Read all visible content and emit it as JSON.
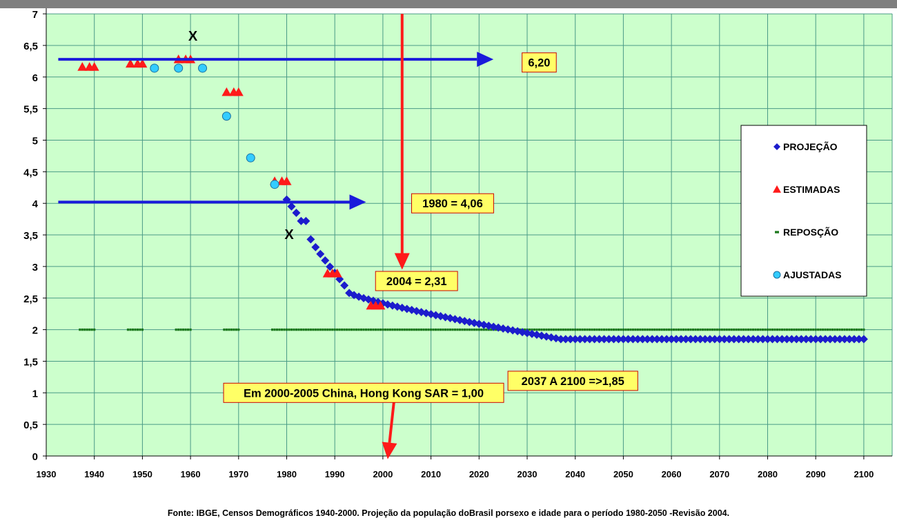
{
  "chart_data": {
    "type": "scatter",
    "xlim": [
      1930,
      2105
    ],
    "ylim": [
      0,
      7
    ],
    "x_ticks": [
      1930,
      1940,
      1950,
      1960,
      1970,
      1980,
      1990,
      2000,
      2010,
      2020,
      2030,
      2040,
      2050,
      2060,
      2070,
      2080,
      2090,
      2100
    ],
    "y_ticks": [
      0,
      0.5,
      1,
      1.5,
      2,
      2.5,
      3,
      3.5,
      4,
      4.5,
      5,
      5.5,
      6,
      6.5,
      7
    ],
    "y_tick_labels": [
      "0",
      "0,5",
      "1",
      "1,5",
      "2",
      "2,5",
      "3",
      "3,5",
      "4",
      "4,5",
      "5",
      "5,5",
      "6",
      "6,5",
      "7"
    ],
    "grid": true,
    "legend_position": "right",
    "colors": {
      "plot_bg": "#ccffcc",
      "grid": "#4a9a86",
      "projecao": "#1c1ccc",
      "estimadas": "#ff1a1a",
      "reposicao": "#1f7a1f",
      "ajustadas": "#33ccff",
      "arrow_blue": "#1a1adb",
      "arrow_red": "#ff1a1a",
      "callout_bg": "#ffff66",
      "callout_border": "#cc0000",
      "header_bar": "#7f7f7f"
    },
    "series": [
      {
        "name": "PROJEÇÃO",
        "marker": "diamond",
        "segments": [
          {
            "x_start": 1980,
            "x_end": 1990,
            "y_start": 4.06,
            "y_end": 2.9,
            "curve": "concave"
          },
          {
            "x_start": 1990,
            "x_end": 2037,
            "y_start": 2.9,
            "y_end": 1.85,
            "curve": "decay"
          },
          {
            "x_start": 2037,
            "x_end": 2100,
            "y_start": 1.85,
            "y_end": 1.85,
            "curve": "flat"
          }
        ],
        "points": [
          [
            1980,
            4.06
          ],
          [
            1981,
            3.95
          ],
          [
            1982,
            3.85
          ],
          [
            1983,
            3.72
          ],
          [
            1984,
            3.72
          ],
          [
            1985,
            3.43
          ]
        ]
      },
      {
        "name": "ESTIMADAS",
        "marker": "triangle",
        "points": [
          [
            1937.5,
            6.16
          ],
          [
            1939,
            6.16
          ],
          [
            1940,
            6.16
          ],
          [
            1947.5,
            6.21
          ],
          [
            1949,
            6.21
          ],
          [
            1950,
            6.21
          ],
          [
            1957.5,
            6.28
          ],
          [
            1959,
            6.28
          ],
          [
            1960,
            6.28
          ],
          [
            1967.5,
            5.76
          ],
          [
            1969,
            5.76
          ],
          [
            1970,
            5.76
          ],
          [
            1977.5,
            4.35
          ],
          [
            1979,
            4.35
          ],
          [
            1980,
            4.35
          ],
          [
            1988.5,
            2.89
          ],
          [
            1989.5,
            2.89
          ],
          [
            1990.5,
            2.89
          ],
          [
            1997.5,
            2.38
          ],
          [
            1998.5,
            2.38
          ],
          [
            1999.5,
            2.38
          ]
        ]
      },
      {
        "name": "REPOSÇÃO",
        "marker": "dash",
        "value": 2.0,
        "ranges": [
          [
            1937,
            1940
          ],
          [
            1947,
            1950
          ],
          [
            1957,
            1960
          ],
          [
            1967,
            1970
          ],
          [
            1977,
            2100
          ]
        ]
      },
      {
        "name": "AJUSTADAS",
        "marker": "circle",
        "points": [
          [
            1952.5,
            6.14
          ],
          [
            1957.5,
            6.14
          ],
          [
            1962.5,
            6.14
          ],
          [
            1967.5,
            5.38
          ],
          [
            1972.5,
            4.72
          ],
          [
            1977.5,
            4.3
          ]
        ]
      }
    ],
    "markers_x": [
      {
        "x": 1960.5,
        "y": 6.65,
        "text": "X"
      },
      {
        "x": 1980.5,
        "y": 3.51,
        "text": "X"
      }
    ],
    "arrows": [
      {
        "color": "arrow_blue",
        "from": [
          1932.5,
          6.28
        ],
        "to": [
          2023,
          6.28
        ]
      },
      {
        "color": "arrow_blue",
        "from": [
          1932.5,
          4.02
        ],
        "to": [
          1996.5,
          4.02
        ]
      },
      {
        "color": "arrow_red",
        "from": [
          2004,
          7.0
        ],
        "to": [
          2004,
          2.95
        ]
      },
      {
        "color": "arrow_red",
        "from": [
          2002.5,
          1.0
        ],
        "to": [
          2001,
          -0.05
        ]
      }
    ],
    "annotations": [
      {
        "text": "6,20",
        "x_center": 2032.5,
        "y_center": 6.23
      },
      {
        "text": "1980 = 4,06",
        "x_center": 2014.5,
        "y_center": 4.0
      },
      {
        "text": "2004 = 2,31",
        "x_center": 2007,
        "y_center": 2.77
      },
      {
        "text": "Em 2000-2005 China, Hong Kong SAR = 1,00",
        "x_center": 1996,
        "y_center": 1.0
      },
      {
        "text": "2037 A 2100 =>1,85",
        "x_center": 2039.5,
        "y_center": 1.19
      }
    ]
  },
  "source": "Fonte: IBGE, Censos Demográficos 1940-2000. Projeção da população doBrasil porsexo e idade para o período 1980-2050 -Revisão 2004."
}
